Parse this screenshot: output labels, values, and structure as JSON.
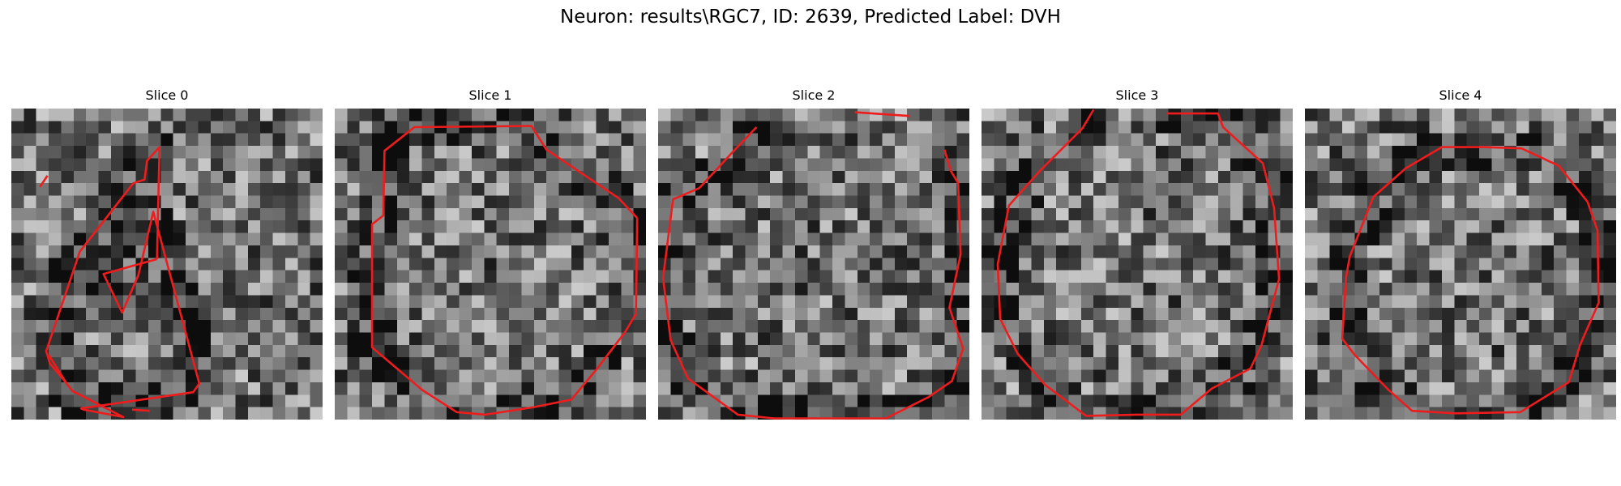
{
  "figure": {
    "title": "Neuron: results\\RGC7, ID: 2639, Predicted Label: DVH"
  },
  "contour_color": "#ee1c1c",
  "grid_size": 25,
  "slices": [
    {
      "title": "Slice 0",
      "contour": [
        [
          11.7,
          12.1
        ],
        [
          11.9,
          3.1
        ],
        [
          10.9,
          4.2
        ],
        [
          10.7,
          5.7
        ],
        [
          9.8,
          6.0
        ],
        [
          5.5,
          11.5
        ],
        [
          2.8,
          19.5
        ],
        [
          3.1,
          20.5
        ],
        [
          4.2,
          21.8
        ],
        [
          4.9,
          22.7
        ],
        [
          9.0,
          24.8
        ],
        [
          5.8,
          24.2
        ],
        [
          5.6,
          24.1
        ],
        [
          14.6,
          22.8
        ],
        [
          15.1,
          22.1
        ],
        [
          11.4,
          8.3
        ],
        [
          10.2,
          13.4
        ],
        [
          8.9,
          16.4
        ],
        [
          7.4,
          13.3
        ],
        [
          11.7,
          12.1
        ]
      ],
      "open_segments": [
        [
          [
            11.1,
            24.3
          ],
          [
            9.7,
            24.2
          ]
        ],
        [
          [
            4.5,
            22.2
          ],
          [
            3.0,
            19.8
          ]
        ],
        [
          [
            2.3,
            6.3
          ],
          [
            2.9,
            5.4
          ]
        ]
      ]
    },
    {
      "title": "Slice 1",
      "contour": [
        [
          24.3,
          8.8
        ],
        [
          22.8,
          7.2
        ],
        [
          17.0,
          3.3
        ],
        [
          15.8,
          1.4
        ],
        [
          6.4,
          1.5
        ],
        [
          4.0,
          3.4
        ],
        [
          3.9,
          8.6
        ],
        [
          3.0,
          9.3
        ],
        [
          3.0,
          19.2
        ],
        [
          7.0,
          22.6
        ],
        [
          9.8,
          24.4
        ],
        [
          12.1,
          24.6
        ],
        [
          16.0,
          24.0
        ],
        [
          19.0,
          23.4
        ],
        [
          21.0,
          21.0
        ],
        [
          23.3,
          18.0
        ],
        [
          24.2,
          16.5
        ],
        [
          24.3,
          8.8
        ]
      ],
      "open_segments": []
    },
    {
      "title": "Slice 2",
      "contour": [
        [
          23.0,
          3.3
        ],
        [
          23.5,
          5.0
        ],
        [
          24.1,
          6.0
        ],
        [
          24.3,
          11.7
        ],
        [
          23.4,
          16.0
        ],
        [
          24.5,
          19.3
        ],
        [
          23.6,
          21.9
        ],
        [
          21.7,
          23.2
        ],
        [
          18.3,
          24.9
        ],
        [
          13.7,
          24.9
        ],
        [
          9.3,
          24.9
        ],
        [
          6.4,
          24.6
        ],
        [
          2.4,
          21.7
        ],
        [
          1.0,
          18.6
        ],
        [
          0.4,
          13.6
        ],
        [
          1.2,
          7.3
        ],
        [
          3.3,
          6.4
        ],
        [
          5.9,
          3.6
        ],
        [
          7.9,
          1.5
        ]
      ],
      "open_segments": [
        [
          [
            15.8,
            0.3
          ],
          [
            20.2,
            0.6
          ]
        ]
      ]
    },
    {
      "title": "Slice 3",
      "contour": [
        [
          14.9,
          0.4
        ],
        [
          19.0,
          0.4
        ],
        [
          19.4,
          1.5
        ],
        [
          22.6,
          4.4
        ],
        [
          23.5,
          8.0
        ],
        [
          23.9,
          13.7
        ],
        [
          22.5,
          19.0
        ],
        [
          21.6,
          20.9
        ],
        [
          18.5,
          22.5
        ],
        [
          16.0,
          24.6
        ],
        [
          12.5,
          24.6
        ],
        [
          8.4,
          24.7
        ],
        [
          5.1,
          22.2
        ],
        [
          2.9,
          19.7
        ],
        [
          1.5,
          16.9
        ],
        [
          1.3,
          12.5
        ],
        [
          2.2,
          7.8
        ],
        [
          4.7,
          5.0
        ],
        [
          8.1,
          1.6
        ],
        [
          9.0,
          0.1
        ]
      ],
      "open_segments": []
    },
    {
      "title": "Slice 4",
      "contour": [
        [
          22.7,
          7.5
        ],
        [
          23.5,
          9.8
        ],
        [
          23.6,
          15.6
        ],
        [
          22.1,
          19.0
        ],
        [
          21.2,
          22.0
        ],
        [
          17.3,
          24.4
        ],
        [
          12.1,
          24.5
        ],
        [
          8.6,
          24.3
        ],
        [
          6.7,
          22.6
        ],
        [
          4.0,
          19.8
        ],
        [
          3.0,
          18.5
        ],
        [
          3.3,
          13.6
        ],
        [
          3.6,
          11.9
        ],
        [
          5.5,
          7.1
        ],
        [
          8.1,
          4.8
        ],
        [
          11.0,
          3.1
        ],
        [
          14.3,
          3.1
        ],
        [
          17.4,
          3.2
        ],
        [
          20.4,
          4.6
        ],
        [
          22.7,
          7.5
        ]
      ],
      "open_segments": []
    }
  ]
}
